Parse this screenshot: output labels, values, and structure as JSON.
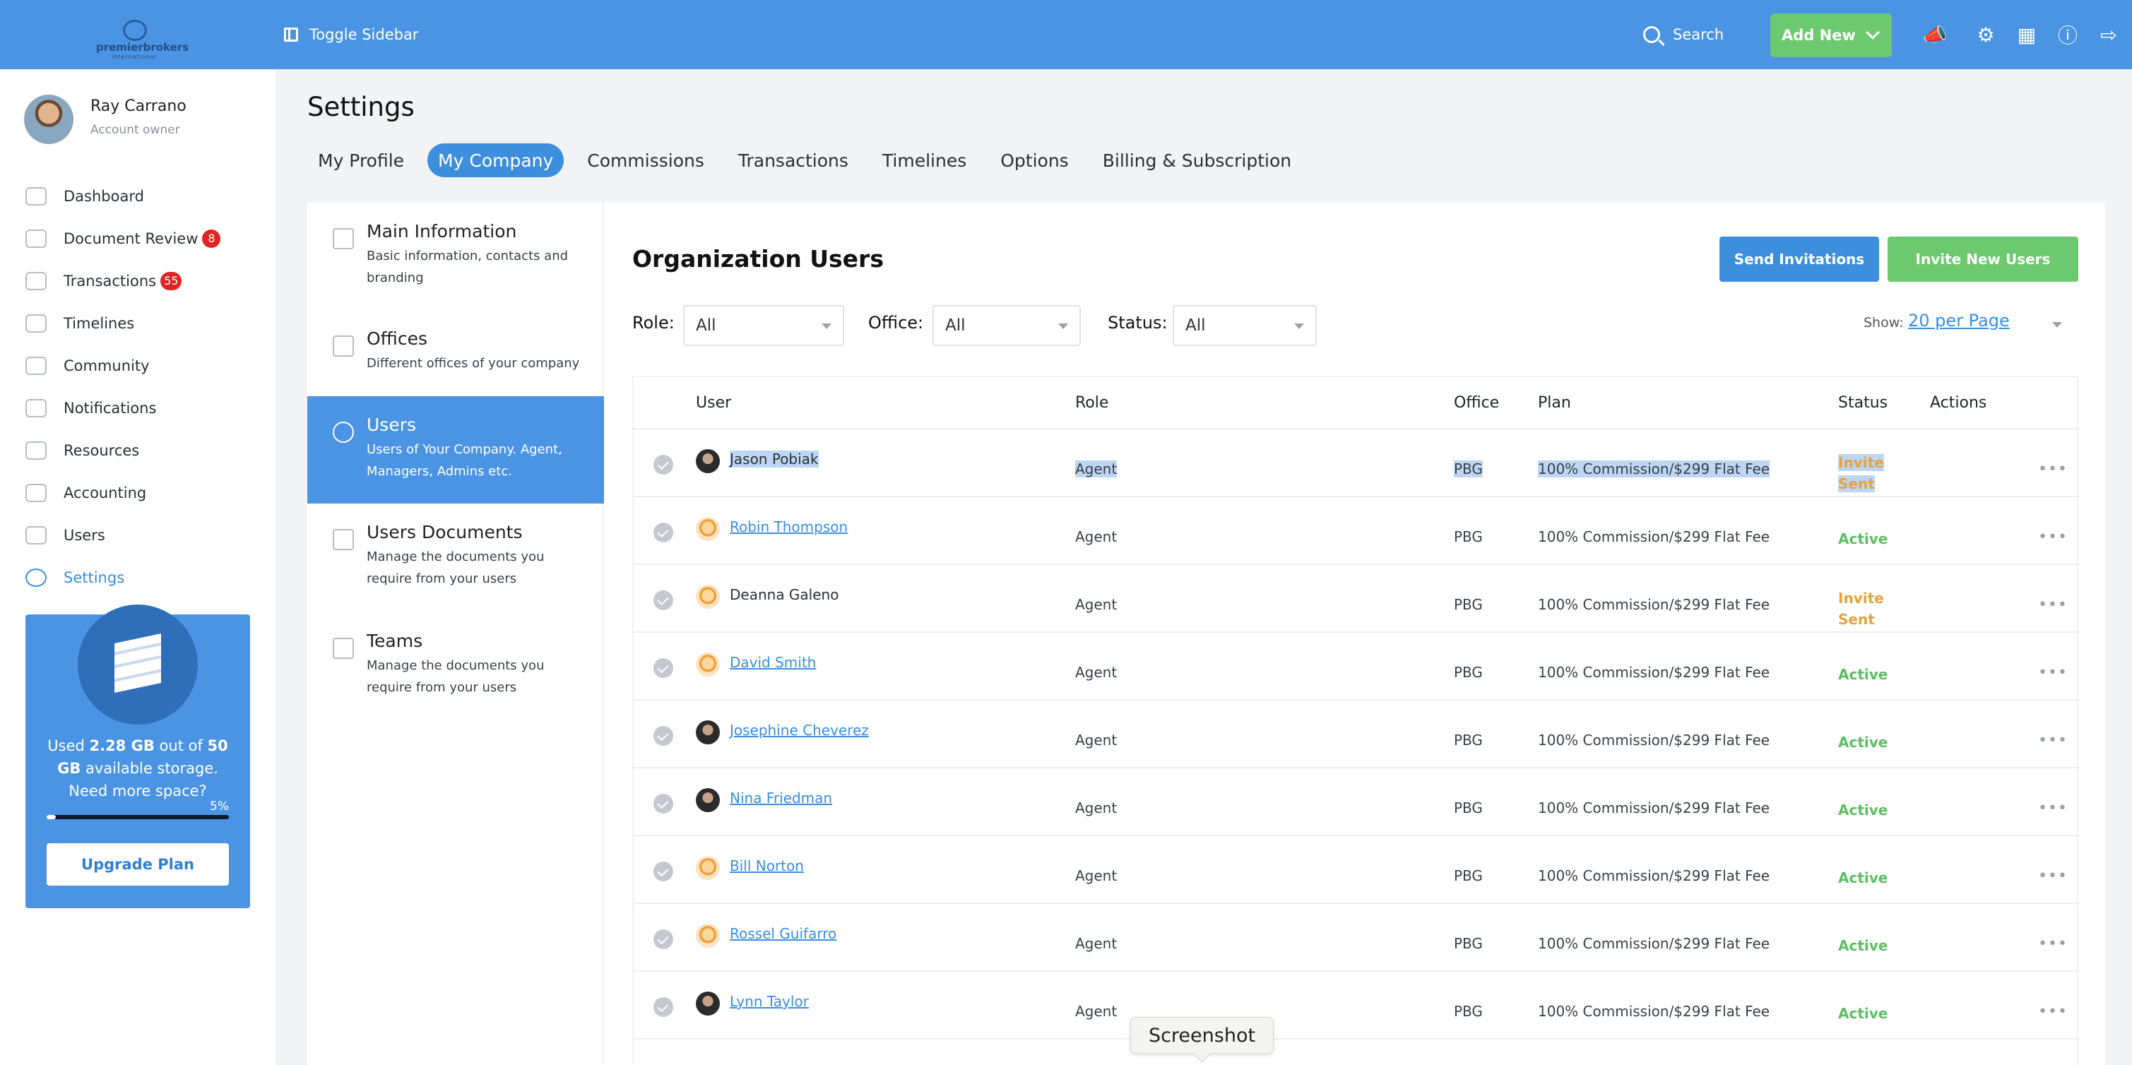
{
  "header": {
    "logo_text": "premierbrokers",
    "logo_sub": "international",
    "toggle_label": "Toggle Sidebar",
    "search_label": "Search",
    "add_new_label": "Add New",
    "icons": [
      "megaphone-icon",
      "gear-icon",
      "calculator-icon",
      "help-icon",
      "logout-icon"
    ]
  },
  "user": {
    "name": "Ray Carrano",
    "role": "Account owner"
  },
  "sidebar": {
    "items": [
      {
        "label": "Dashboard",
        "badge": ""
      },
      {
        "label": "Document Review",
        "badge": "8"
      },
      {
        "label": "Transactions",
        "badge": "55"
      },
      {
        "label": "Timelines",
        "badge": ""
      },
      {
        "label": "Community",
        "badge": ""
      },
      {
        "label": "Notifications",
        "badge": ""
      },
      {
        "label": "Resources",
        "badge": ""
      },
      {
        "label": "Accounting",
        "badge": ""
      },
      {
        "label": "Users",
        "badge": ""
      },
      {
        "label": "Settings",
        "badge": ""
      }
    ],
    "active": "Settings"
  },
  "storage": {
    "used_prefix": "Used ",
    "used": "2.28 GB",
    "mid": " out of ",
    "total": "50 GB",
    "suffix": " available storage.",
    "question": "Need more space?",
    "percent_label": "5%",
    "percent": 5,
    "upgrade_label": "Upgrade Plan"
  },
  "page": {
    "title": "Settings",
    "tabs": [
      "My Profile",
      "My Company",
      "Commissions",
      "Transactions",
      "Timelines",
      "Options",
      "Billing & Subscription"
    ],
    "active_tab": "My Company"
  },
  "subnav": [
    {
      "title": "Main Information",
      "desc": "Basic information, contacts and branding"
    },
    {
      "title": "Offices",
      "desc": "Different offices of your company"
    },
    {
      "title": "Users",
      "desc": "Users of Your Company. Agent, Managers, Admins etc."
    },
    {
      "title": "Users Documents",
      "desc": "Manage the documents you require from your users"
    },
    {
      "title": "Teams",
      "desc": "Manage the documents you require from your users"
    }
  ],
  "org": {
    "title": "Organization Users",
    "send_invitations": "Send Invitations",
    "invite_new_users": "Invite New Users"
  },
  "filters": {
    "role_label": "Role:",
    "role_value": "All",
    "office_label": "Office:",
    "office_value": "All",
    "status_label": "Status:",
    "status_value": "All",
    "show_label": "Show:",
    "show_value": "20 per Page"
  },
  "table": {
    "headers": {
      "user": "User",
      "role": "Role",
      "office": "Office",
      "plan": "Plan",
      "status": "Status",
      "actions": "Actions"
    },
    "rows": [
      {
        "name": "Jason Pobiak",
        "role": "Agent",
        "office": "PBG",
        "plan": "100% Commission/$299 Flat Fee",
        "status_l1": "Invite",
        "status_l2": "Sent"
      },
      {
        "name": "Robin Thompson",
        "role": "Agent",
        "office": "PBG",
        "plan": "100% Commission/$299 Flat Fee",
        "status_l1": "Active",
        "status_l2": ""
      },
      {
        "name": "Deanna Galeno",
        "role": "Agent",
        "office": "PBG",
        "plan": "100% Commission/$299 Flat Fee",
        "status_l1": "Invite",
        "status_l2": "Sent"
      },
      {
        "name": "David Smith",
        "role": "Agent",
        "office": "PBG",
        "plan": "100% Commission/$299 Flat Fee",
        "status_l1": "Active",
        "status_l2": ""
      },
      {
        "name": "Josephine Cheverez",
        "role": "Agent",
        "office": "PBG",
        "plan": "100% Commission/$299 Flat Fee",
        "status_l1": "Active",
        "status_l2": ""
      },
      {
        "name": "Nina Friedman",
        "role": "Agent",
        "office": "PBG",
        "plan": "100% Commission/$299 Flat Fee",
        "status_l1": "Active",
        "status_l2": ""
      },
      {
        "name": "Bill Norton",
        "role": "Agent",
        "office": "PBG",
        "plan": "100% Commission/$299 Flat Fee",
        "status_l1": "Active",
        "status_l2": ""
      },
      {
        "name": "Rossel Guifarro",
        "role": "Agent",
        "office": "PBG",
        "plan": "100% Commission/$299 Flat Fee",
        "status_l1": "Active",
        "status_l2": ""
      },
      {
        "name": "Lynn Taylor",
        "role": "Agent",
        "office": "PBG",
        "plan": "100% Commission/$299 Flat Fee",
        "status_l1": "Active",
        "status_l2": ""
      }
    ],
    "actions_glyph": "•••"
  },
  "tooltip": "Screenshot",
  "colors": {
    "brand": "#4a94e3",
    "green": "#6cc96f",
    "active_status": "#5cbf62",
    "invite_status": "#e8a23a",
    "badge": "#e02424"
  }
}
